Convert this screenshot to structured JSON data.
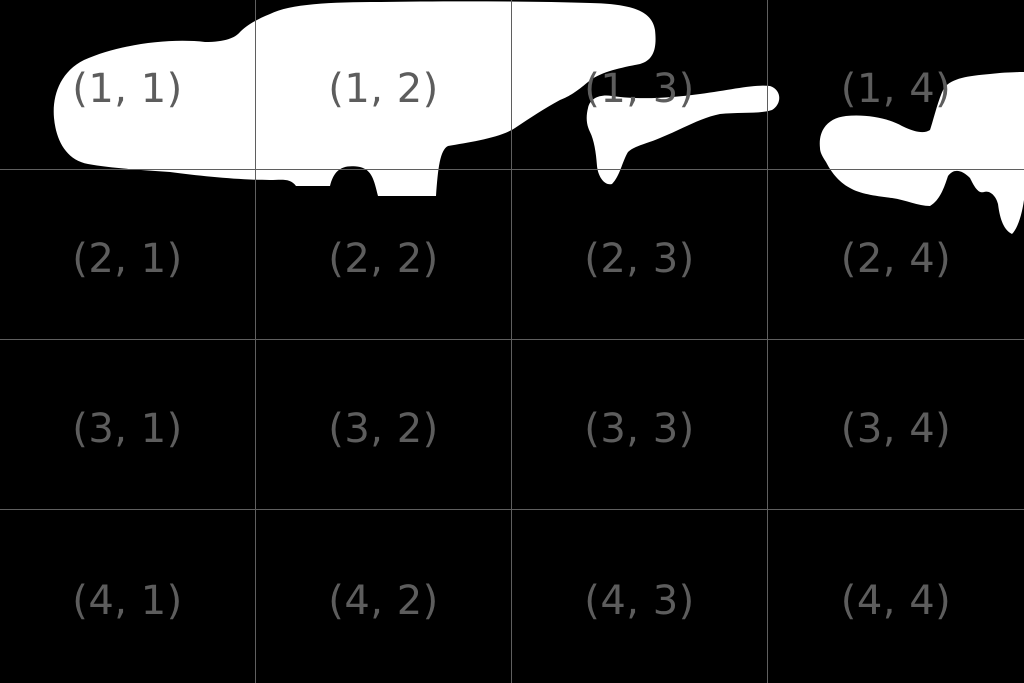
{
  "grid": {
    "rows": 4,
    "columns": 4,
    "line_color": "#5f5f5f",
    "label_color": "#5d5d5d",
    "cells": [
      "(1, 1)",
      "(1, 2)",
      "(1, 3)",
      "(1, 4)",
      "(2, 1)",
      "(2, 2)",
      "(2, 3)",
      "(2, 4)",
      "(3, 1)",
      "(3, 2)",
      "(3, 3)",
      "(3, 4)",
      "(4, 1)",
      "(4, 2)",
      "(4, 3)",
      "(4, 4)"
    ]
  },
  "mask": {
    "background_color": "#000000",
    "foreground_color": "#ffffff"
  }
}
